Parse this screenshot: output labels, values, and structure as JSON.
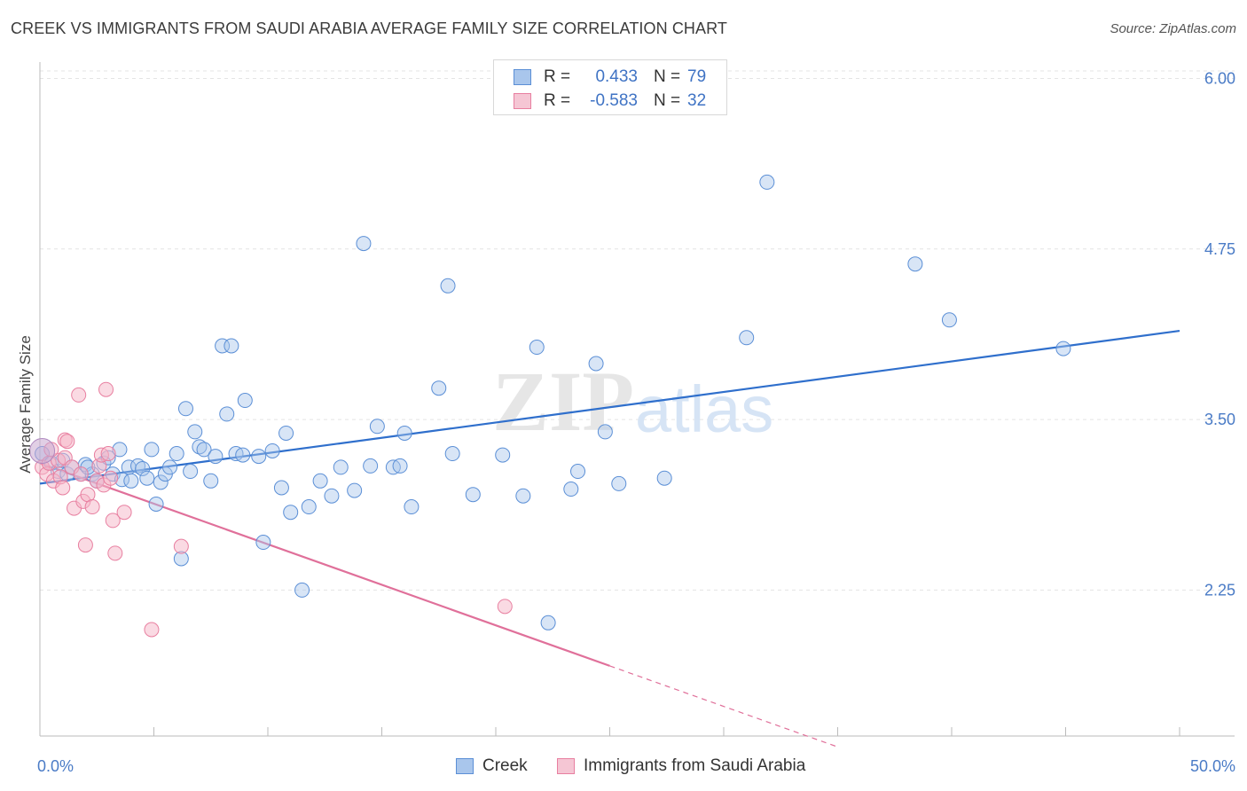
{
  "title": "CREEK VS IMMIGRANTS FROM SAUDI ARABIA AVERAGE FAMILY SIZE CORRELATION CHART",
  "source": "Source: ZipAtlas.com",
  "watermark": {
    "zip": "ZIP",
    "atlas": "atlas"
  },
  "colors": {
    "creek_fill": "#a9c6ec",
    "creek_stroke": "#5b8fd6",
    "creek_line": "#2f6fcc",
    "saudi_fill": "#f5b6c8",
    "saudi_stroke": "#e87fa0",
    "saudi_line": "#e0709a",
    "grid": "#e4e4e4",
    "tick_label": "#4a7bc6"
  },
  "legend": {
    "r_label": "R =",
    "n_label": "N =",
    "creek_r": "0.433",
    "creek_n": "79",
    "saudi_r": "-0.583",
    "saudi_n": "32"
  },
  "chart_data": {
    "type": "scatter",
    "title": "CREEK VS IMMIGRANTS FROM SAUDI ARABIA AVERAGE FAMILY SIZE CORRELATION CHART",
    "xlabel": "",
    "ylabel": "Average Family Size",
    "xlim": [
      0,
      50
    ],
    "ylim": [
      1.18,
      6.12
    ],
    "x_tick_labels": [
      "0.0%",
      "50.0%"
    ],
    "y_ticks": [
      2.25,
      3.5,
      4.75,
      6.0
    ],
    "y_tick_labels": [
      "2.25",
      "3.50",
      "4.75",
      "6.00"
    ],
    "grid": "horizontal dashed",
    "legend_position": "top-center",
    "series": [
      {
        "name": "Creek",
        "r": 0.433,
        "n": 79,
        "trend": {
          "x": [
            0,
            50
          ],
          "y": [
            3.03,
            4.15
          ]
        },
        "points": [
          [
            0.1,
            3.25
          ],
          [
            0.5,
            3.18
          ],
          [
            0.8,
            3.12
          ],
          [
            1.0,
            3.2
          ],
          [
            1.2,
            3.1
          ],
          [
            1.4,
            3.15
          ],
          [
            1.8,
            3.1
          ],
          [
            2.0,
            3.17
          ],
          [
            2.3,
            3.1
          ],
          [
            2.5,
            3.05
          ],
          [
            2.8,
            3.18
          ],
          [
            3.0,
            3.22
          ],
          [
            3.2,
            3.1
          ],
          [
            3.5,
            3.28
          ],
          [
            3.6,
            3.06
          ],
          [
            3.9,
            3.15
          ],
          [
            4.0,
            3.05
          ],
          [
            4.3,
            3.16
          ],
          [
            4.5,
            3.14
          ],
          [
            4.7,
            3.07
          ],
          [
            4.9,
            3.28
          ],
          [
            5.1,
            2.88
          ],
          [
            5.3,
            3.04
          ],
          [
            5.5,
            3.1
          ],
          [
            5.7,
            3.15
          ],
          [
            6.0,
            3.25
          ],
          [
            6.2,
            2.48
          ],
          [
            6.4,
            3.58
          ],
          [
            6.6,
            3.12
          ],
          [
            6.8,
            3.41
          ],
          [
            7.0,
            3.3
          ],
          [
            7.2,
            3.28
          ],
          [
            7.5,
            3.05
          ],
          [
            7.7,
            3.23
          ],
          [
            8.0,
            4.04
          ],
          [
            8.2,
            3.54
          ],
          [
            8.4,
            4.04
          ],
          [
            8.6,
            3.25
          ],
          [
            8.9,
            3.24
          ],
          [
            9.0,
            3.64
          ],
          [
            9.6,
            3.23
          ],
          [
            9.8,
            2.6
          ],
          [
            10.2,
            3.27
          ],
          [
            10.6,
            3.0
          ],
          [
            10.8,
            3.4
          ],
          [
            11.0,
            2.82
          ],
          [
            11.5,
            2.25
          ],
          [
            11.8,
            2.86
          ],
          [
            12.3,
            3.05
          ],
          [
            12.8,
            2.94
          ],
          [
            13.2,
            3.15
          ],
          [
            13.8,
            2.98
          ],
          [
            14.2,
            4.79
          ],
          [
            14.5,
            3.16
          ],
          [
            14.8,
            3.45
          ],
          [
            15.5,
            3.15
          ],
          [
            15.8,
            3.16
          ],
          [
            16.0,
            3.4
          ],
          [
            16.3,
            2.86
          ],
          [
            17.5,
            3.73
          ],
          [
            17.9,
            4.48
          ],
          [
            18.1,
            3.25
          ],
          [
            19.0,
            2.95
          ],
          [
            20.3,
            3.24
          ],
          [
            21.2,
            2.94
          ],
          [
            21.8,
            4.03
          ],
          [
            22.3,
            2.01
          ],
          [
            23.3,
            2.99
          ],
          [
            23.6,
            3.12
          ],
          [
            24.4,
            3.91
          ],
          [
            24.8,
            3.41
          ],
          [
            25.4,
            3.03
          ],
          [
            27.4,
            3.07
          ],
          [
            31.0,
            4.1
          ],
          [
            31.9,
            5.24
          ],
          [
            38.4,
            4.64
          ],
          [
            39.9,
            4.23
          ],
          [
            44.9,
            4.02
          ],
          [
            2.1,
            3.15
          ]
        ]
      },
      {
        "name": "Immigrants from Saudi Arabia",
        "r": -0.583,
        "n": 32,
        "trend": {
          "x": [
            0,
            35
          ],
          "y": [
            3.18,
            1.1
          ],
          "solid_until_x": 25
        },
        "points": [
          [
            0.1,
            3.15
          ],
          [
            0.3,
            3.1
          ],
          [
            0.4,
            3.18
          ],
          [
            0.6,
            3.05
          ],
          [
            0.8,
            3.2
          ],
          [
            0.9,
            3.08
          ],
          [
            1.0,
            3.0
          ],
          [
            1.1,
            3.22
          ],
          [
            1.1,
            3.35
          ],
          [
            1.2,
            3.34
          ],
          [
            1.4,
            3.15
          ],
          [
            1.5,
            2.85
          ],
          [
            1.7,
            3.68
          ],
          [
            1.8,
            3.1
          ],
          [
            1.9,
            2.9
          ],
          [
            2.0,
            2.58
          ],
          [
            2.1,
            2.95
          ],
          [
            2.3,
            2.86
          ],
          [
            2.5,
            3.05
          ],
          [
            2.6,
            3.16
          ],
          [
            2.7,
            3.24
          ],
          [
            2.8,
            3.02
          ],
          [
            2.9,
            3.72
          ],
          [
            3.0,
            3.25
          ],
          [
            3.1,
            3.07
          ],
          [
            3.2,
            2.76
          ],
          [
            3.3,
            2.52
          ],
          [
            3.7,
            2.82
          ],
          [
            4.9,
            1.96
          ],
          [
            6.2,
            2.57
          ],
          [
            20.4,
            2.13
          ],
          [
            0.5,
            3.28
          ]
        ]
      }
    ]
  }
}
